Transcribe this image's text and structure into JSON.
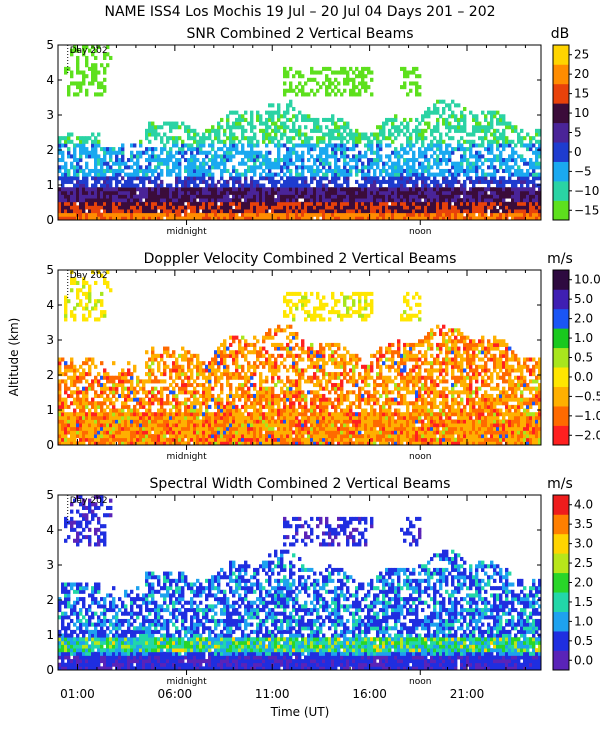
{
  "figure": {
    "title": "NAME ISS4 Los Mochis  19 Jul – 20 Jul 04 Days 201 – 202",
    "xlabel": "Time (UT)",
    "ylabel": "Altitude (km)",
    "x_ticks": [
      "01:00",
      "06:00",
      "11:00",
      "16:00",
      "21:00"
    ],
    "x_tick_hours": [
      1,
      6,
      11,
      16,
      21
    ],
    "x_markers": [
      {
        "label": "midnight",
        "hour": 6.6
      },
      {
        "label": "noon",
        "hour": 18.6
      }
    ],
    "day_label": "Day 202",
    "day_hour": 0.5
  },
  "chart_data": [
    {
      "type": "heatmap",
      "title": "SNR Combined 2 Vertical Beams",
      "xlabel": "Time (UT)",
      "ylabel": "Altitude (km)",
      "xlim": [
        0,
        24.8
      ],
      "ylim": [
        0,
        5
      ],
      "y_ticks": [
        0,
        1,
        2,
        3,
        4,
        5
      ],
      "colorbar": {
        "unit": "dB",
        "labels": [
          "25",
          "20",
          "15",
          "10",
          "5",
          "0",
          "−5",
          "−10",
          "−15"
        ],
        "levels": [
          -15,
          -10,
          -5,
          0,
          5,
          10,
          15,
          20,
          25
        ],
        "colors": [
          "#5de01d",
          "#2ad3a4",
          "#1aa9f0",
          "#1e3ccf",
          "#4a2498",
          "#3b0c3a",
          "#e8420a",
          "#ff8c00",
          "#ffd400"
        ]
      },
      "field_description": "strong (10-25 dB) below 0.8 km, 0 to -5 dB from 1 to 2 km, -10 dB weak echoes up to 3.2 km, -15 dB patches near 4 km"
    },
    {
      "type": "heatmap",
      "title": "Doppler Velocity Combined 2 Vertical Beams",
      "xlabel": "Time (UT)",
      "ylabel": "Altitude (km)",
      "xlim": [
        0,
        24.8
      ],
      "ylim": [
        0,
        5
      ],
      "y_ticks": [
        0,
        1,
        2,
        3,
        4,
        5
      ],
      "colorbar": {
        "unit": "m/s",
        "labels": [
          "10.0",
          "5.0",
          "2.0",
          "1.0",
          "0.5",
          "0.0",
          "−0.5",
          "−1.0",
          "−2.0"
        ],
        "levels": [
          -2.0,
          -1.0,
          -0.5,
          0.0,
          0.5,
          1.0,
          2.0,
          5.0,
          10.0
        ],
        "colors": [
          "#ff2020",
          "#ff6a00",
          "#ffb000",
          "#ffe600",
          "#a8e61d",
          "#19c91e",
          "#1a55f5",
          "#3f1fb3",
          "#2e0a40"
        ]
      },
      "field_description": "mostly -0.5 to 0 m/s (yellow/orange) from 0 to 3.2 km, scattered red downdrafts, sparse layer near 4 km"
    },
    {
      "type": "heatmap",
      "title": "Spectral Width Combined 2 Vertical Beams",
      "xlabel": "Time (UT)",
      "ylabel": "Altitude (km)",
      "xlim": [
        0,
        24.8
      ],
      "ylim": [
        0,
        5
      ],
      "y_ticks": [
        0,
        1,
        2,
        3,
        4,
        5
      ],
      "colorbar": {
        "unit": "m/s",
        "labels": [
          "4.0",
          "3.5",
          "3.0",
          "2.5",
          "2.0",
          "1.5",
          "1.0",
          "0.5",
          "0.0"
        ],
        "levels": [
          0.0,
          0.5,
          1.0,
          1.5,
          2.0,
          2.5,
          3.0,
          3.5,
          4.0
        ],
        "colors": [
          "#5a23b8",
          "#1f2ee0",
          "#1ea2ef",
          "#22d7a8",
          "#29d629",
          "#b8e61a",
          "#ffd400",
          "#ff7f00",
          "#ee1c1c"
        ]
      },
      "field_description": "0.5-1.0 m/s (blue) dominant from 0.5 to 3.2 km, 1.5-3.0 m/s band near 0.7 km, patches near 4 km"
    }
  ]
}
